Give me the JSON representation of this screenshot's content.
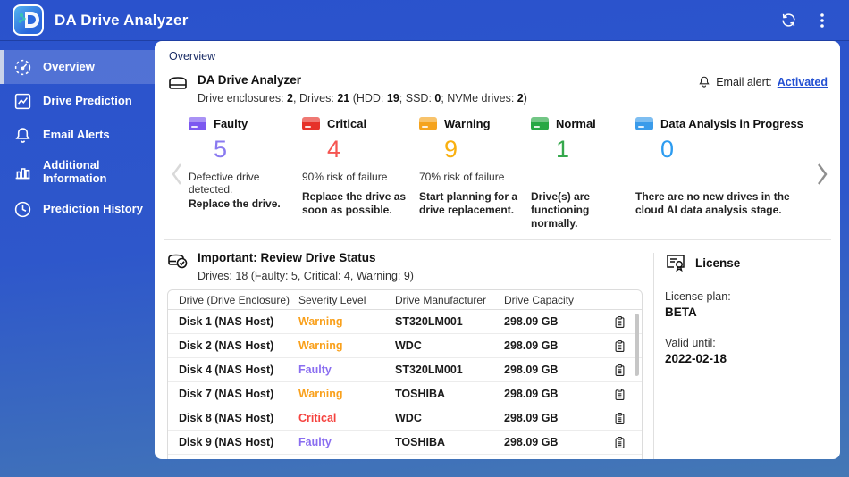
{
  "app": {
    "title": "DA Drive Analyzer"
  },
  "sidebar": {
    "items": [
      {
        "label": "Overview",
        "icon": "gauge",
        "selected": true
      },
      {
        "label": "Drive Prediction",
        "icon": "line-chart",
        "selected": false
      },
      {
        "label": "Email Alerts",
        "icon": "bell",
        "selected": false
      },
      {
        "label": "Additional Information",
        "icon": "bar-chart",
        "selected": false
      },
      {
        "label": "Prediction History",
        "icon": "clock",
        "selected": false
      }
    ]
  },
  "breadcrumb": "Overview",
  "summary": {
    "title": "DA Drive Analyzer",
    "segments": [
      {
        "text": "Drive enclosures: ",
        "bold": false
      },
      {
        "text": "2",
        "bold": true
      },
      {
        "text": ", Drives: ",
        "bold": false
      },
      {
        "text": "21",
        "bold": true
      },
      {
        "text": " (HDD: ",
        "bold": false
      },
      {
        "text": "19",
        "bold": true
      },
      {
        "text": "; SSD: ",
        "bold": false
      },
      {
        "text": "0",
        "bold": true
      },
      {
        "text": "; NVMe drives: ",
        "bold": false
      },
      {
        "text": "2",
        "bold": true
      },
      {
        "text": ")",
        "bold": false
      }
    ],
    "email_alert_label": "Email alert:",
    "email_alert_link": "Activated"
  },
  "status_cards": [
    {
      "label": "Faulty",
      "count": "5",
      "num_color": "#8a7af0",
      "icon_color": "#7c58f0",
      "line1": "Defective drive detected.",
      "line2": "Replace the drive."
    },
    {
      "label": "Critical",
      "count": "4",
      "num_color": "#f55551",
      "icon_color": "#e63229",
      "line1": "90% risk of failure",
      "line2": "Replace the drive as soon as possible."
    },
    {
      "label": "Warning",
      "count": "9",
      "num_color": "#f9b00f",
      "icon_color": "#f5a31d",
      "line1": "70% risk of failure",
      "line2": "Start planning for a drive replacement."
    },
    {
      "label": "Normal",
      "count": "1",
      "num_color": "#35a84c",
      "icon_color": "#27a844",
      "line1": "",
      "line2": "Drive(s) are functioning normally."
    },
    {
      "label": "Data Analysis in Progress",
      "count": "0",
      "num_color": "#2d9cf0",
      "icon_color": "#3a9bea",
      "line1": "",
      "line2": "There are no new drives in the cloud AI data analysis stage."
    }
  ],
  "drive_status": {
    "title": "Important: Review Drive Status",
    "subtitle": "Drives: 18 (Faulty: 5, Critical: 4, Warning: 9)",
    "columns": [
      "Drive (Drive Enclosure)",
      "Severity Level",
      "Drive Manufacturer",
      "Drive Capacity"
    ],
    "severity_colors": {
      "Warning": "#f9a01b",
      "Faulty": "#8a6ef0",
      "Critical": "#f5433f"
    },
    "rows": [
      {
        "drive": "Disk 1 (NAS Host)",
        "severity": "Warning",
        "manufacturer": "ST320LM001",
        "capacity": "298.09 GB"
      },
      {
        "drive": "Disk 2 (NAS Host)",
        "severity": "Warning",
        "manufacturer": "WDC",
        "capacity": "298.09 GB"
      },
      {
        "drive": "Disk 4 (NAS Host)",
        "severity": "Faulty",
        "manufacturer": "ST320LM001",
        "capacity": "298.09 GB"
      },
      {
        "drive": "Disk 7 (NAS Host)",
        "severity": "Warning",
        "manufacturer": "TOSHIBA",
        "capacity": "298.09 GB"
      },
      {
        "drive": "Disk 8 (NAS Host)",
        "severity": "Critical",
        "manufacturer": "WDC",
        "capacity": "298.09 GB"
      },
      {
        "drive": "Disk 9 (NAS Host)",
        "severity": "Faulty",
        "manufacturer": "TOSHIBA",
        "capacity": "298.09 GB"
      }
    ]
  },
  "license": {
    "title": "License",
    "plan_label": "License plan:",
    "plan": "BETA",
    "valid_label": "Valid until:",
    "valid": "2022-02-18"
  }
}
